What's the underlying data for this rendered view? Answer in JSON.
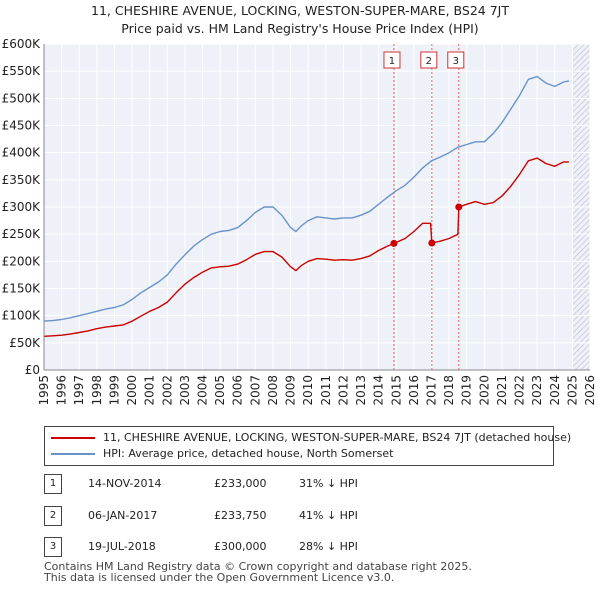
{
  "title": {
    "line1": "11, CHESHIRE AVENUE, LOCKING, WESTON-SUPER-MARE, BS24 7JT",
    "line2": "Price paid vs. HM Land Registry's House Price Index (HPI)"
  },
  "chart_data": {
    "type": "line",
    "title": "11, CHESHIRE AVENUE, LOCKING, WESTON-SUPER-MARE, BS24 7JT",
    "subtitle": "Price paid vs. HM Land Registry's House Price Index (HPI)",
    "xlim": [
      1995,
      2026
    ],
    "ylim": [
      0,
      600000
    ],
    "y_ticks": [
      {
        "v": 0,
        "label": "£0"
      },
      {
        "v": 50000,
        "label": "£50K"
      },
      {
        "v": 100000,
        "label": "£100K"
      },
      {
        "v": 150000,
        "label": "£150K"
      },
      {
        "v": 200000,
        "label": "£200K"
      },
      {
        "v": 250000,
        "label": "£250K"
      },
      {
        "v": 300000,
        "label": "£300K"
      },
      {
        "v": 350000,
        "label": "£350K"
      },
      {
        "v": 400000,
        "label": "£400K"
      },
      {
        "v": 450000,
        "label": "£450K"
      },
      {
        "v": 500000,
        "label": "£500K"
      },
      {
        "v": 550000,
        "label": "£550K"
      },
      {
        "v": 600000,
        "label": "£600K"
      }
    ],
    "x_ticks": [
      "1995",
      "1996",
      "1997",
      "1998",
      "1999",
      "2000",
      "2001",
      "2002",
      "2003",
      "2004",
      "2005",
      "2006",
      "2007",
      "2008",
      "2009",
      "2010",
      "2011",
      "2012",
      "2013",
      "2014",
      "2015",
      "2016",
      "2017",
      "2018",
      "2019",
      "2020",
      "2021",
      "2022",
      "2023",
      "2024",
      "2025",
      "2026"
    ],
    "grid": true,
    "forecast_start": 2025.0,
    "sales": [
      {
        "label": "1",
        "x": 2014.87,
        "y": 233000
      },
      {
        "label": "2",
        "x": 2017.02,
        "y": 233750
      },
      {
        "label": "3",
        "x": 2018.55,
        "y": 300000
      }
    ],
    "series": [
      {
        "name": "11, CHESHIRE AVENUE, LOCKING, WESTON-SUPER-MARE, BS24 7JT (detached house)",
        "color": "#cc0000",
        "points": [
          [
            1995.0,
            62000
          ],
          [
            1995.5,
            63000
          ],
          [
            1996.0,
            64000
          ],
          [
            1996.5,
            66000
          ],
          [
            1997.0,
            69000
          ],
          [
            1997.5,
            72000
          ],
          [
            1998.0,
            76000
          ],
          [
            1998.5,
            79000
          ],
          [
            1999.0,
            81000
          ],
          [
            1999.5,
            83000
          ],
          [
            2000.0,
            90000
          ],
          [
            2000.5,
            99000
          ],
          [
            2001.0,
            108000
          ],
          [
            2001.5,
            115000
          ],
          [
            2002.0,
            125000
          ],
          [
            2002.5,
            142000
          ],
          [
            2003.0,
            158000
          ],
          [
            2003.5,
            170000
          ],
          [
            2004.0,
            180000
          ],
          [
            2004.5,
            188000
          ],
          [
            2005.0,
            190000
          ],
          [
            2005.5,
            191000
          ],
          [
            2006.0,
            195000
          ],
          [
            2006.5,
            203000
          ],
          [
            2007.0,
            213000
          ],
          [
            2007.5,
            218000
          ],
          [
            2008.0,
            218000
          ],
          [
            2008.5,
            208000
          ],
          [
            2009.0,
            190000
          ],
          [
            2009.3,
            183000
          ],
          [
            2009.6,
            192000
          ],
          [
            2010.0,
            200000
          ],
          [
            2010.5,
            205000
          ],
          [
            2011.0,
            204000
          ],
          [
            2011.5,
            202000
          ],
          [
            2012.0,
            203000
          ],
          [
            2012.5,
            202000
          ],
          [
            2013.0,
            205000
          ],
          [
            2013.5,
            210000
          ],
          [
            2014.0,
            220000
          ],
          [
            2014.5,
            228000
          ],
          [
            2014.87,
            233000
          ],
          [
            2015.5,
            242000
          ],
          [
            2016.0,
            255000
          ],
          [
            2016.5,
            270000
          ],
          [
            2016.95,
            270000
          ],
          [
            2017.02,
            233750
          ],
          [
            2017.5,
            237000
          ],
          [
            2018.0,
            242000
          ],
          [
            2018.5,
            250000
          ],
          [
            2018.55,
            300000
          ],
          [
            2019.0,
            305000
          ],
          [
            2019.5,
            310000
          ],
          [
            2020.0,
            305000
          ],
          [
            2020.5,
            308000
          ],
          [
            2021.0,
            320000
          ],
          [
            2021.5,
            338000
          ],
          [
            2022.0,
            360000
          ],
          [
            2022.5,
            385000
          ],
          [
            2023.0,
            390000
          ],
          [
            2023.5,
            380000
          ],
          [
            2024.0,
            375000
          ],
          [
            2024.5,
            383000
          ],
          [
            2024.8,
            383000
          ]
        ]
      },
      {
        "name": "HPI: Average price, detached house, North Somerset",
        "color": "#6a93c8",
        "points": [
          [
            1995.0,
            90000
          ],
          [
            1995.5,
            91000
          ],
          [
            1996.0,
            93000
          ],
          [
            1996.5,
            96000
          ],
          [
            1997.0,
            100000
          ],
          [
            1997.5,
            104000
          ],
          [
            1998.0,
            108000
          ],
          [
            1998.5,
            112000
          ],
          [
            1999.0,
            115000
          ],
          [
            1999.5,
            120000
          ],
          [
            2000.0,
            130000
          ],
          [
            2000.5,
            142000
          ],
          [
            2001.0,
            152000
          ],
          [
            2001.5,
            162000
          ],
          [
            2002.0,
            175000
          ],
          [
            2002.5,
            195000
          ],
          [
            2003.0,
            212000
          ],
          [
            2003.5,
            228000
          ],
          [
            2004.0,
            240000
          ],
          [
            2004.5,
            250000
          ],
          [
            2005.0,
            255000
          ],
          [
            2005.5,
            257000
          ],
          [
            2006.0,
            262000
          ],
          [
            2006.5,
            275000
          ],
          [
            2007.0,
            290000
          ],
          [
            2007.5,
            300000
          ],
          [
            2008.0,
            300000
          ],
          [
            2008.5,
            285000
          ],
          [
            2009.0,
            262000
          ],
          [
            2009.3,
            255000
          ],
          [
            2009.6,
            265000
          ],
          [
            2010.0,
            275000
          ],
          [
            2010.5,
            282000
          ],
          [
            2011.0,
            280000
          ],
          [
            2011.5,
            278000
          ],
          [
            2012.0,
            280000
          ],
          [
            2012.5,
            280000
          ],
          [
            2013.0,
            285000
          ],
          [
            2013.5,
            292000
          ],
          [
            2014.0,
            305000
          ],
          [
            2014.5,
            318000
          ],
          [
            2015.0,
            330000
          ],
          [
            2015.5,
            340000
          ],
          [
            2016.0,
            355000
          ],
          [
            2016.5,
            372000
          ],
          [
            2017.0,
            385000
          ],
          [
            2017.5,
            392000
          ],
          [
            2018.0,
            400000
          ],
          [
            2018.5,
            410000
          ],
          [
            2019.0,
            415000
          ],
          [
            2019.5,
            420000
          ],
          [
            2020.0,
            420000
          ],
          [
            2020.5,
            435000
          ],
          [
            2021.0,
            455000
          ],
          [
            2021.5,
            480000
          ],
          [
            2022.0,
            505000
          ],
          [
            2022.5,
            535000
          ],
          [
            2023.0,
            540000
          ],
          [
            2023.5,
            528000
          ],
          [
            2024.0,
            522000
          ],
          [
            2024.5,
            530000
          ],
          [
            2024.8,
            532000
          ]
        ]
      }
    ]
  },
  "legend": {
    "items": [
      {
        "label": "11, CHESHIRE AVENUE, LOCKING, WESTON-SUPER-MARE, BS24 7JT (detached house)",
        "color": "#cc0000"
      },
      {
        "label": "HPI: Average price, detached house, North Somerset",
        "color": "#6a93c8"
      }
    ]
  },
  "transactions": [
    {
      "num": "1",
      "date": "14-NOV-2014",
      "price": "£233,000",
      "hpi": "31% ↓ HPI"
    },
    {
      "num": "2",
      "date": "06-JAN-2017",
      "price": "£233,750",
      "hpi": "41% ↓ HPI"
    },
    {
      "num": "3",
      "date": "19-JUL-2018",
      "price": "£300,000",
      "hpi": "28% ↓ HPI"
    }
  ],
  "footer": {
    "line1": "Contains HM Land Registry data © Crown copyright and database right 2025.",
    "line2": "This data is licensed under the Open Government Licence v3.0."
  }
}
